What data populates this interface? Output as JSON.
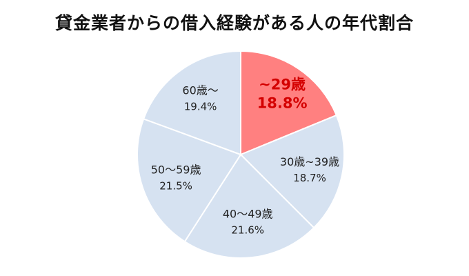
{
  "chart_data": {
    "type": "pie",
    "title": "貸金業者からの借入経験がある人の年代割合",
    "categories": [
      "~29歳",
      "30歳~39歳",
      "40～49歳",
      "50～59歳",
      "60歳～"
    ],
    "values": [
      18.8,
      18.7,
      21.6,
      21.5,
      19.4
    ],
    "value_labels": [
      "18.8%",
      "18.7%",
      "21.6%",
      "21.5%",
      "19.4%"
    ],
    "highlight_index": 0,
    "legend": "none"
  },
  "colors": {
    "highlight": "#ff8080",
    "slice": "#d6e2f1",
    "border": "#ffffff",
    "highlight_text": "#d40000",
    "text": "#222222"
  }
}
